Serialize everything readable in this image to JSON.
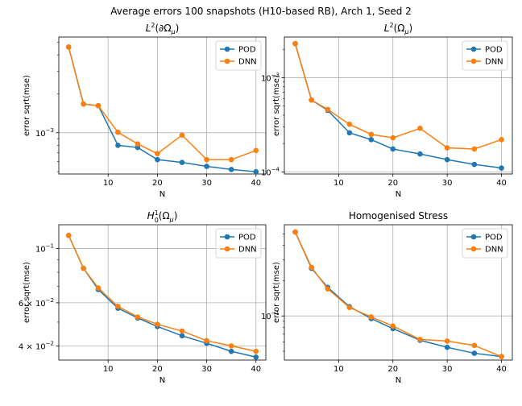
{
  "figure": {
    "suptitle": "Average errors 100 snapshots (H10-based RB), Arch 1, Seed 2"
  },
  "colors": {
    "pod": "#1f77b4",
    "dnn": "#ff7f0e",
    "grid": "#b0b0b0"
  },
  "chart_data": [
    {
      "type": "line",
      "title": "L²(∂Ω_μ)",
      "xlabel": "N",
      "ylabel": "error sqrt(mse)",
      "yscale": "log",
      "grid": true,
      "legend": "top-right",
      "xlim": [
        -0.0,
        42.0
      ],
      "ylim": [
        0.00048,
        0.0055
      ],
      "xticks": [
        10,
        20,
        30,
        40
      ],
      "yticks": [
        {
          "value": 0.001,
          "base": "10",
          "exp": "−3"
        }
      ],
      "x": [
        2,
        5,
        8,
        12,
        16,
        20,
        25,
        30,
        35,
        40
      ],
      "series": [
        {
          "name": "POD",
          "values": [
            0.0046,
            0.00167,
            0.00162,
            0.0008,
            0.00077,
            0.00062,
            0.00059,
            0.00055,
            0.00052,
            0.0005
          ]
        },
        {
          "name": "DNN",
          "values": [
            0.0046,
            0.00167,
            0.00162,
            0.00101,
            0.00082,
            0.00069,
            0.00096,
            0.00062,
            0.00062,
            0.00073
          ]
        }
      ]
    },
    {
      "type": "line",
      "title": "L²(Ω_μ)",
      "xlabel": "N",
      "ylabel": "error sqrt(mse)",
      "yscale": "log",
      "grid": true,
      "legend": "top-right",
      "xlim": [
        -0.0,
        42.0
      ],
      "ylim": [
        9.5e-05,
        0.0027
      ],
      "xticks": [
        10,
        20,
        30,
        40
      ],
      "yticks": [
        {
          "value": 0.0001,
          "base": "10",
          "exp": "−4"
        },
        {
          "value": 0.001,
          "base": "10",
          "exp": "−3"
        }
      ],
      "x": [
        2,
        5,
        8,
        12,
        16,
        20,
        25,
        30,
        35,
        40
      ],
      "series": [
        {
          "name": "POD",
          "values": [
            0.0023,
            0.00058,
            0.00045,
            0.00026,
            0.00022,
            0.000175,
            0.000155,
            0.000135,
            0.00012,
            0.00011
          ]
        },
        {
          "name": "DNN",
          "values": [
            0.0023,
            0.00058,
            0.00046,
            0.00032,
            0.00025,
            0.00023,
            0.00029,
            0.00018,
            0.000175,
            0.00022
          ]
        }
      ]
    },
    {
      "type": "line",
      "title": "H¹₀(Ω_μ)",
      "xlabel": "N",
      "ylabel": "error sqrt(mse)",
      "yscale": "log",
      "grid": true,
      "legend": "top-right",
      "xlim": [
        -0.0,
        42.0
      ],
      "ylim": [
        0.035,
        0.125
      ],
      "xticks": [
        10,
        20,
        30,
        40
      ],
      "yticks": [
        {
          "value": 0.04,
          "base": "4 × 10",
          "exp": "−2"
        },
        {
          "value": 0.06,
          "base": "6 × 10",
          "exp": "−2"
        },
        {
          "value": 0.1,
          "base": "10",
          "exp": "−1"
        }
      ],
      "x": [
        2,
        5,
        8,
        12,
        16,
        20,
        25,
        30,
        35,
        40
      ],
      "series": [
        {
          "name": "POD",
          "values": [
            0.113,
            0.083,
            0.068,
            0.057,
            0.052,
            0.048,
            0.044,
            0.041,
            0.038,
            0.036
          ]
        },
        {
          "name": "DNN",
          "values": [
            0.113,
            0.083,
            0.069,
            0.058,
            0.0525,
            0.049,
            0.046,
            0.042,
            0.04,
            0.038
          ]
        }
      ]
    },
    {
      "type": "line",
      "title": "Homogenised Stress",
      "xlabel": "N",
      "ylabel": "error sqrt(mse)",
      "yscale": "log",
      "grid": true,
      "legend": "top-right",
      "xlim": [
        -0.0,
        42.0
      ],
      "ylim": [
        0.042,
        0.6
      ],
      "xticks": [
        10,
        20,
        30,
        40
      ],
      "yticks": [
        {
          "value": 0.1,
          "base": "10",
          "exp": "−1"
        }
      ],
      "x": [
        2,
        5,
        8,
        12,
        16,
        20,
        25,
        30,
        35,
        40
      ],
      "series": [
        {
          "name": "POD",
          "values": [
            0.52,
            0.255,
            0.175,
            0.12,
            0.095,
            0.078,
            0.062,
            0.054,
            0.048,
            0.045
          ]
        },
        {
          "name": "DNN",
          "values": [
            0.52,
            0.26,
            0.17,
            0.118,
            0.098,
            0.082,
            0.063,
            0.061,
            0.056,
            0.045
          ]
        }
      ]
    }
  ]
}
